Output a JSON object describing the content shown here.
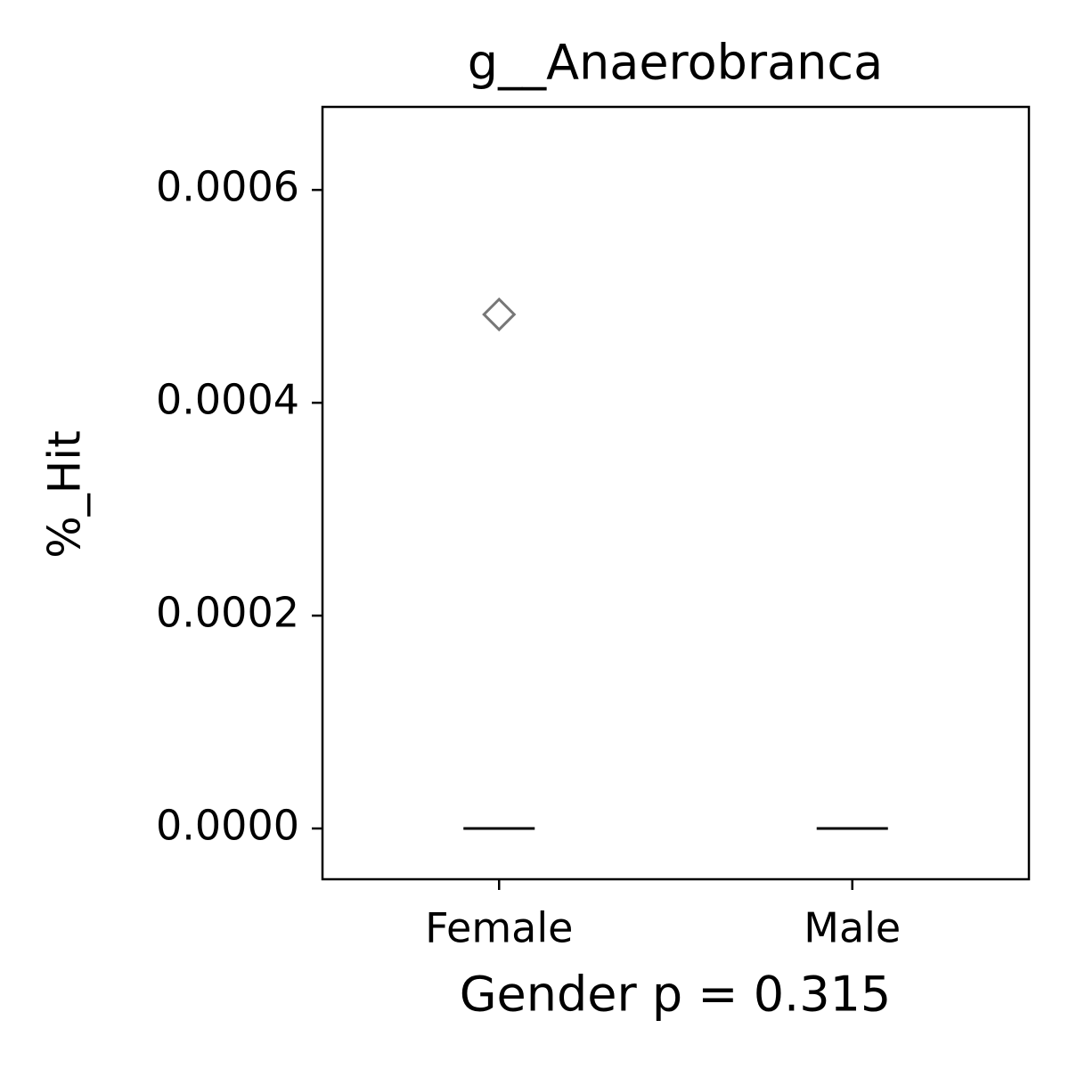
{
  "chart_data": {
    "type": "box",
    "title": "g__Anaerobranca",
    "x_label": "Gender p = 0.315",
    "y_label": "%_Hit",
    "categories": [
      "Female",
      "Male"
    ],
    "boxes": [
      {
        "whislo": 0,
        "q1": 0,
        "med": 0,
        "q3": 0,
        "whishi": 0,
        "fliers": [
          0.000483
        ]
      },
      {
        "whislo": 0,
        "q1": 0,
        "med": 0,
        "q3": 0,
        "whishi": 0,
        "fliers": []
      }
    ],
    "box_color": "#000000",
    "flier_color": "#777777",
    "ylim": [
      -4.77e-05,
      0.000678
    ],
    "yticks": [
      {
        "value": 0,
        "label": "0.0000"
      },
      {
        "value": 0.0002,
        "label": "0.0002"
      },
      {
        "value": 0.0004,
        "label": "0.0004"
      },
      {
        "value": 0.0006,
        "label": "0.0006"
      }
    ],
    "grid": false
  }
}
